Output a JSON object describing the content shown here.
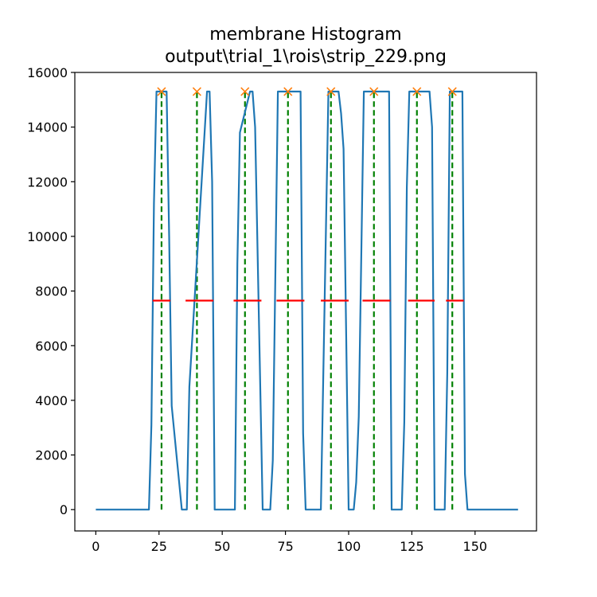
{
  "chart_data": {
    "type": "line",
    "title": "membrane Histogram",
    "subtitle": "output\\trial_1\\rois\\strip_229.png",
    "xlabel": "",
    "ylabel": "",
    "xlim": [
      -8.3,
      174.3
    ],
    "ylim": [
      -780,
      16000
    ],
    "xticks": [
      0,
      25,
      50,
      75,
      100,
      125,
      150
    ],
    "yticks": [
      0,
      2000,
      4000,
      6000,
      8000,
      10000,
      12000,
      14000,
      16000
    ],
    "grid": false,
    "colors": {
      "histogram": "#1f77b4",
      "peaks": "#ff7f0e",
      "peak_lines": "#008000",
      "widths": "#ff0000"
    },
    "histogram": {
      "x": [
        0,
        21,
        22,
        23,
        24,
        28,
        29,
        30,
        34,
        35,
        36,
        37,
        44,
        45,
        46,
        47,
        53,
        54,
        55,
        56,
        57,
        61,
        62,
        63,
        66,
        67,
        68,
        69,
        70,
        72,
        73,
        80,
        81,
        82,
        83,
        87,
        88,
        89,
        90,
        92,
        95,
        96,
        97,
        98,
        100,
        101,
        102,
        103,
        104,
        106,
        107,
        115,
        116,
        117,
        118,
        121,
        122,
        123,
        124,
        126,
        130,
        131,
        132,
        133,
        134,
        136,
        137,
        138,
        139,
        140,
        145,
        146,
        147,
        167
      ],
      "y": [
        0,
        0,
        3100,
        11200,
        15300,
        15300,
        10000,
        3800,
        0,
        0,
        0,
        4500,
        15300,
        15300,
        12000,
        0,
        0,
        0,
        0,
        9000,
        13800,
        15300,
        15300,
        14000,
        0,
        0,
        0,
        0,
        1800,
        15300,
        15300,
        15300,
        15300,
        2800,
        0,
        0,
        0,
        0,
        5000,
        15300,
        15300,
        15300,
        14500,
        13200,
        0,
        0,
        0,
        1000,
        3400,
        15300,
        15300,
        15300,
        15300,
        0,
        0,
        0,
        3200,
        11800,
        15300,
        15300,
        15300,
        15300,
        15300,
        14000,
        0,
        0,
        0,
        0,
        5000,
        15300,
        15300,
        1300,
        0,
        0
      ]
    },
    "peaks": {
      "x": [
        26,
        40,
        59,
        76,
        93,
        110,
        127,
        141
      ],
      "y": [
        15300,
        15300,
        15300,
        15300,
        15300,
        15300,
        15300,
        15300
      ]
    },
    "widths": {
      "y": 7650,
      "segments": [
        [
          22.5,
          29.5
        ],
        [
          35.5,
          46.5
        ],
        [
          54.5,
          65.5
        ],
        [
          71.5,
          82.5
        ],
        [
          89,
          100
        ],
        [
          105.5,
          116.5
        ],
        [
          123.5,
          134
        ],
        [
          138.5,
          145.5
        ]
      ]
    }
  }
}
